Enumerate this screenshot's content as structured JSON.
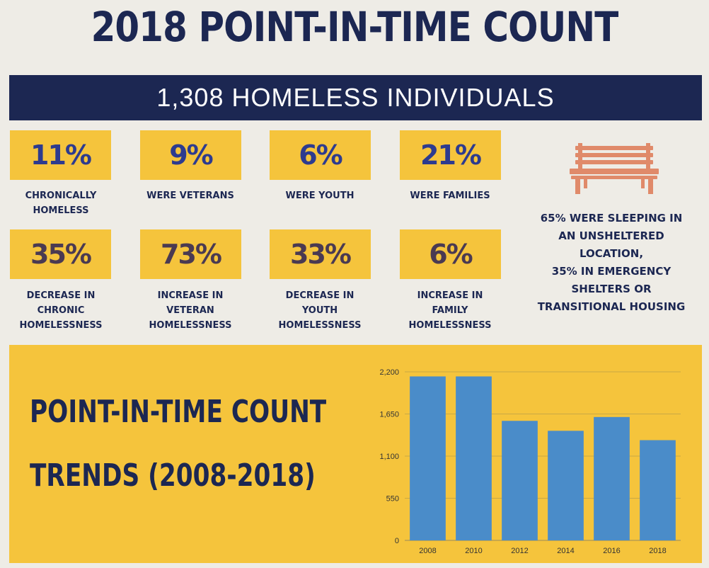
{
  "title": "2018 POINT-IN-TIME COUNT",
  "banner": "1,308 HOMELESS INDIVIDUALS",
  "stats_row1": [
    {
      "value": "11%",
      "label": "CHRONICALLY\nHOMELESS"
    },
    {
      "value": "9%",
      "label": "WERE VETERANS"
    },
    {
      "value": "6%",
      "label": "WERE YOUTH"
    },
    {
      "value": "21%",
      "label": "WERE FAMILIES"
    }
  ],
  "stats_row2": [
    {
      "value": "35%",
      "label": "DECREASE IN\nCHRONIC\nHOMELESSNESS"
    },
    {
      "value": "73%",
      "label": "INCREASE IN\nVETERAN\nHOMELESSNESS"
    },
    {
      "value": "33%",
      "label": "DECREASE IN\nYOUTH\nHOMELESSNESS"
    },
    {
      "value": "6%",
      "label": "INCREASE IN\nFAMILY\nHOMELESSNESS"
    }
  ],
  "bench_icon": "park-bench-icon",
  "sleeping_note": "65% WERE SLEEPING IN\nAN UNSHELTERED\nLOCATION,\n35% IN EMERGENCY\nSHELTERS OR\nTRANSITIONAL HOUSING",
  "trend_title_line1": "POINT-IN-TIME COUNT",
  "trend_title_line2": "TRENDS (2008-2018)",
  "colors": {
    "navy": "#1c2752",
    "gold": "#f5c43c",
    "bar": "#4a8cc9",
    "bench": "#e08a6a"
  },
  "chart_data": {
    "type": "bar",
    "categories": [
      "2008",
      "2010",
      "2012",
      "2014",
      "2016",
      "2018"
    ],
    "values": [
      2140,
      2140,
      1560,
      1430,
      1610,
      1308
    ],
    "ylim": [
      0,
      2200
    ],
    "yticks": [
      "0",
      "550",
      "1,100",
      "1,650",
      "2,200"
    ],
    "ytick_values": [
      0,
      550,
      1100,
      1650,
      2200
    ],
    "grid": true
  }
}
